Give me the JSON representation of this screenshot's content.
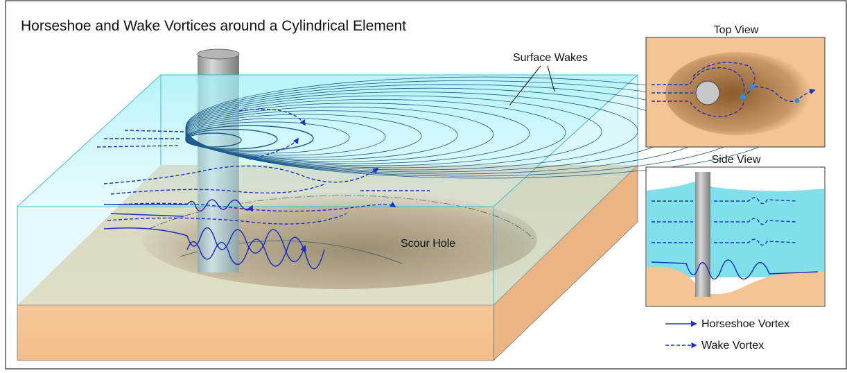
{
  "title": "Horseshoe and Wake Vortices around a Cylindrical Element",
  "labels": {
    "surface_wakes": "Surface Wakes",
    "scour_hole": "Scour Hole"
  },
  "panels": [
    {
      "title": "Top View"
    },
    {
      "title": "Side View"
    }
  ],
  "legend": [
    {
      "label": "Horseshoe Vortex"
    },
    {
      "label": "Wake Vortex"
    }
  ]
}
